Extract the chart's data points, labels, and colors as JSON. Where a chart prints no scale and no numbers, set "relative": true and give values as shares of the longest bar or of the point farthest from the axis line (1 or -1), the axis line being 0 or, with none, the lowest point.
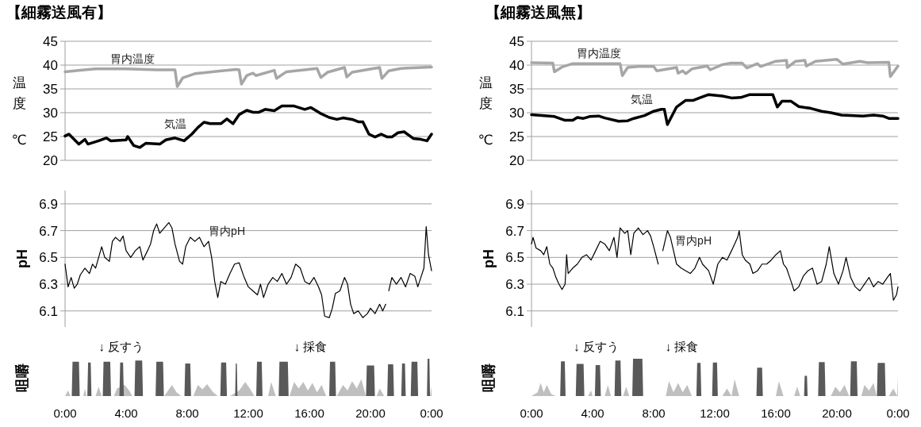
{
  "chart_data": [
    {
      "type": "line",
      "title": "【細霧送風有】",
      "ylabel": "温度℃",
      "xlim": [
        0,
        24
      ],
      "ylim": [
        20,
        45
      ],
      "yticks": [
        20,
        25,
        30,
        35,
        40,
        45
      ],
      "grid": "y",
      "tick_labels": "y",
      "series": [
        {
          "name": "胃内温度",
          "color": "#a6a6a6",
          "x": [
            0,
            1,
            2,
            4,
            6,
            7.2,
            7.35,
            7.7,
            8.5,
            10,
            11.2,
            11.4,
            11.55,
            11.9,
            12.3,
            12.5,
            13.7,
            13.85,
            14.5,
            16.5,
            16.75,
            17.2,
            18.3,
            18.45,
            18.8,
            20.6,
            20.75,
            21.2,
            22,
            24
          ],
          "values": [
            38.6,
            38.9,
            39.2,
            39.2,
            39.0,
            39.0,
            35.5,
            37.3,
            38.2,
            38.7,
            39.1,
            39.0,
            36.0,
            37.8,
            38.3,
            37.8,
            38.9,
            37.2,
            38.6,
            39.3,
            37.4,
            38.5,
            39.5,
            37.5,
            38.5,
            39.5,
            37.2,
            38.8,
            39.3,
            39.6
          ]
        },
        {
          "name": "気温",
          "color": "#000000",
          "x": [
            0,
            0.25,
            0.9,
            1.3,
            1.5,
            2.2,
            2.7,
            3.0,
            4.0,
            4.1,
            4.5,
            4.9,
            5.3,
            6.2,
            6.6,
            7.2,
            7.8,
            8.3,
            8.7,
            9.1,
            9.5,
            10.2,
            10.6,
            11.0,
            11.4,
            11.9,
            12.3,
            12.7,
            13.1,
            13.7,
            14.2,
            15.0,
            15.7,
            16.1,
            16.7,
            17.3,
            17.8,
            18.2,
            18.8,
            19.2,
            19.5,
            19.9,
            20.3,
            20.7,
            21.1,
            21.4,
            21.8,
            22.2,
            22.8,
            23.3,
            23.7,
            24
          ],
          "values": [
            25.1,
            25.5,
            23.4,
            24.4,
            23.4,
            24.1,
            24.7,
            24.1,
            24.3,
            25.0,
            23.1,
            22.7,
            23.6,
            23.4,
            24.3,
            24.7,
            24.1,
            25.5,
            26.9,
            28.0,
            27.7,
            27.7,
            28.7,
            27.7,
            29.6,
            30.5,
            30.1,
            30.1,
            30.7,
            30.4,
            31.4,
            31.4,
            30.7,
            31.1,
            29.9,
            29.0,
            28.6,
            28.9,
            28.6,
            28.1,
            28.1,
            25.5,
            24.9,
            25.5,
            24.9,
            24.9,
            25.8,
            26.0,
            24.6,
            24.4,
            24.1,
            25.5
          ]
        }
      ]
    },
    {
      "type": "line",
      "title": "【細霧送風無】",
      "ylabel": "温度℃",
      "xlim": [
        0,
        24
      ],
      "ylim": [
        20,
        45
      ],
      "yticks": [
        20,
        25,
        30,
        35,
        40,
        45
      ],
      "grid": "y",
      "tick_labels": "y",
      "series": [
        {
          "name": "胃内温度",
          "color": "#a6a6a6",
          "x": [
            0,
            1.4,
            1.5,
            2,
            2.7,
            5.8,
            5.95,
            6.3,
            7,
            8,
            8.2,
            9.5,
            9.6,
            9.9,
            10.1,
            10.5,
            11.5,
            11.7,
            12.5,
            13,
            13.8,
            14.1,
            14.8,
            15,
            16,
            16.7,
            16.75,
            17.3,
            17.9,
            18,
            18.6,
            20,
            20.4,
            21.5,
            22,
            23.4,
            23.5,
            24
          ],
          "values": [
            40.5,
            40.4,
            38.6,
            39.6,
            40.3,
            40.3,
            37.8,
            39.5,
            39.7,
            39.7,
            38.8,
            39.5,
            38.3,
            38.8,
            38.2,
            39.2,
            39.8,
            39.0,
            40.1,
            40.4,
            40.4,
            39.4,
            40.3,
            39.7,
            40.8,
            41.0,
            39.5,
            40.8,
            41.0,
            39.8,
            40.8,
            41.2,
            40.2,
            40.8,
            40.5,
            40.6,
            37.6,
            39.8
          ]
        },
        {
          "name": "気温",
          "color": "#000000",
          "x": [
            0,
            1.5,
            2.2,
            2.7,
            3.0,
            3.4,
            3.8,
            4.4,
            4.8,
            5.7,
            6.3,
            6.7,
            7.4,
            8.0,
            8.5,
            8.7,
            8.9,
            9.5,
            10.1,
            10.6,
            11.0,
            11.6,
            12.5,
            13.1,
            13.7,
            14.3,
            15.8,
            16.1,
            16.4,
            17.0,
            17.5,
            18.3,
            19.0,
            19.6,
            20.3,
            21.7,
            22.4,
            23.0,
            23.4,
            24
          ],
          "values": [
            29.6,
            29.2,
            28.4,
            28.4,
            29.0,
            28.8,
            29.2,
            29.3,
            28.9,
            28.2,
            28.3,
            28.8,
            29.4,
            30.3,
            30.7,
            30.7,
            27.5,
            31.2,
            32.6,
            32.6,
            33.1,
            33.8,
            33.5,
            33.1,
            33.2,
            33.8,
            33.8,
            31.2,
            32.4,
            32.4,
            31.3,
            30.9,
            30.3,
            30.0,
            29.5,
            29.3,
            29.5,
            29.3,
            28.8,
            28.8
          ]
        }
      ]
    },
    {
      "type": "line",
      "ylabel": "pH",
      "xlim": [
        0,
        24
      ],
      "ylim": [
        5.98,
        7.0
      ],
      "yticks": [
        6.1,
        6.3,
        6.5,
        6.7,
        6.9
      ],
      "grid": "y",
      "tick_labels": "y",
      "series": [
        {
          "name": "胃内pH",
          "color": "#000000",
          "x": [
            0,
            0.2,
            0.4,
            0.6,
            0.8,
            1,
            1.3,
            1.6,
            1.8,
            2.0,
            2.2,
            2.4,
            2.6,
            2.9,
            3.1,
            3.3,
            3.6,
            3.8,
            4.0,
            4.3,
            4.6,
            4.9,
            5.1,
            5.4,
            5.6,
            5.8,
            6.0,
            6.2,
            6.5,
            6.8,
            7.0,
            7.2,
            7.5,
            7.7,
            7.9,
            8.2,
            8.5,
            8.8,
            9.1,
            9.4,
            9.6,
            9.8,
            10.0,
            10.2,
            10.5,
            10.8,
            11.1,
            11.4,
            11.7,
            12.0,
            12.3,
            12.6,
            12.8,
            13.0,
            13.3,
            13.6,
            13.9,
            14.2,
            14.5,
            14.8,
            15.1,
            15.4,
            15.7,
            16.0,
            16.3,
            16.6,
            16.8,
            17.0,
            17.3,
            17.5,
            17.7,
            18.0,
            18.3,
            18.5,
            18.7,
            18.9,
            19.2,
            19.5,
            19.8,
            20.0,
            20.3,
            20.6,
            20.8,
            21.0,
            21.1,
            21.2,
            21.4,
            21.7,
            22.0,
            22.3,
            22.6,
            22.9,
            23.1,
            23.3,
            23.5,
            23.65,
            23.8,
            24
          ],
          "values": [
            6.45,
            6.28,
            6.35,
            6.27,
            6.3,
            6.37,
            6.42,
            6.38,
            6.45,
            6.42,
            6.5,
            6.58,
            6.5,
            6.47,
            6.62,
            6.65,
            6.62,
            6.66,
            6.55,
            6.5,
            6.55,
            6.58,
            6.48,
            6.55,
            6.6,
            6.7,
            6.75,
            6.68,
            6.72,
            6.76,
            6.72,
            6.6,
            6.47,
            6.45,
            6.58,
            6.65,
            6.62,
            6.65,
            6.58,
            6.62,
            6.5,
            6.32,
            6.2,
            6.32,
            6.3,
            6.38,
            6.45,
            6.46,
            6.36,
            6.28,
            6.25,
            6.22,
            6.3,
            6.2,
            6.3,
            6.35,
            6.32,
            6.38,
            6.3,
            6.35,
            6.45,
            6.42,
            6.32,
            6.3,
            6.35,
            6.28,
            6.22,
            6.06,
            6.05,
            6.12,
            6.23,
            6.25,
            6.35,
            6.3,
            6.15,
            6.08,
            6.1,
            6.05,
            6.08,
            6.12,
            6.08,
            6.15,
            6.1,
            6.15,
            null,
            6.25,
            6.35,
            6.3,
            6.35,
            6.28,
            6.38,
            6.36,
            6.28,
            6.35,
            6.42,
            6.73,
            6.52,
            6.4
          ]
        }
      ]
    },
    {
      "type": "line",
      "ylabel": "pH",
      "xlim": [
        0,
        24
      ],
      "ylim": [
        5.98,
        7.0
      ],
      "yticks": [
        6.1,
        6.3,
        6.5,
        6.7,
        6.9
      ],
      "grid": "y",
      "tick_labels": "y",
      "series": [
        {
          "name": "胃内pH",
          "color": "#000000",
          "x": [
            0,
            0.1,
            0.3,
            0.6,
            0.8,
            1.0,
            1.2,
            1.4,
            1.6,
            1.8,
            2.0,
            2.2,
            2.3,
            2.4,
            2.7,
            3.0,
            3.3,
            3.6,
            3.9,
            4.2,
            4.5,
            4.8,
            5.1,
            5.4,
            5.6,
            5.8,
            6.1,
            6.3,
            6.5,
            6.7,
            7.0,
            7.3,
            7.6,
            7.8,
            8.0,
            8.3,
            8.4,
            8.6,
            8.9,
            9.1,
            9.3,
            9.5,
            9.8,
            10.1,
            10.4,
            10.7,
            11.0,
            11.2,
            11.6,
            11.9,
            12.2,
            12.5,
            12.8,
            13.1,
            13.3,
            13.5,
            13.6,
            13.8,
            14.0,
            14.3,
            14.5,
            14.8,
            15.1,
            15.4,
            15.7,
            16.0,
            16.3,
            16.5,
            16.7,
            17.0,
            17.2,
            17.5,
            17.8,
            18.1,
            18.4,
            18.7,
            19.0,
            19.3,
            19.5,
            19.8,
            20.1,
            20.4,
            20.6,
            20.9,
            21.2,
            21.5,
            21.8,
            22.1,
            22.4,
            22.7,
            23.0,
            23.3,
            23.5,
            23.7,
            23.9,
            24
          ],
          "values": [
            6.6,
            6.65,
            6.57,
            6.55,
            6.52,
            6.58,
            6.45,
            6.42,
            6.35,
            6.3,
            6.26,
            6.3,
            6.52,
            6.38,
            6.42,
            6.45,
            6.5,
            6.52,
            6.48,
            6.55,
            6.62,
            6.6,
            6.55,
            6.65,
            6.5,
            6.72,
            6.68,
            6.7,
            6.52,
            6.68,
            6.72,
            6.67,
            6.7,
            6.66,
            6.58,
            6.45,
            null,
            6.55,
            6.7,
            6.65,
            6.55,
            6.45,
            6.42,
            6.4,
            6.38,
            6.42,
            6.5,
            6.45,
            6.4,
            6.3,
            6.45,
            6.5,
            6.48,
            6.55,
            6.6,
            6.65,
            6.7,
            6.52,
            6.48,
            6.45,
            6.38,
            6.4,
            6.45,
            6.45,
            6.48,
            6.52,
            6.55,
            6.45,
            6.42,
            6.32,
            6.25,
            6.28,
            6.36,
            6.4,
            6.42,
            6.3,
            6.32,
            6.45,
            6.58,
            6.38,
            6.3,
            6.4,
            6.5,
            6.35,
            6.28,
            6.25,
            6.3,
            6.35,
            6.28,
            6.32,
            6.3,
            6.35,
            6.38,
            6.18,
            6.22,
            6.28
          ]
        }
      ]
    },
    {
      "type": "area",
      "relative": true,
      "ylabel": "咀嚼",
      "xlim": [
        0,
        24
      ],
      "xticks": [
        {
          "value": 0,
          "label": "0:00"
        },
        {
          "value": 4,
          "label": "4:00"
        },
        {
          "value": 8,
          "label": "8:00"
        },
        {
          "value": 12,
          "label": "12:00"
        },
        {
          "value": 16,
          "label": "16:00"
        },
        {
          "value": 20,
          "label": "20:00"
        },
        {
          "value": 24,
          "label": "0:00"
        }
      ],
      "tick_labels": "x",
      "annotations": [
        "↓ 反すう",
        "↓ 採食"
      ],
      "series": [
        {
          "color": "#bfbfbf",
          "x": [
            0,
            0.2,
            0.35,
            1.2,
            1.3,
            1.4,
            2.0,
            2.2,
            2.4,
            3.2,
            3.4,
            3.9,
            4.2,
            4.4,
            6.5,
            7.0,
            7.3,
            7.6,
            8.4,
            8.7,
            9.0,
            9.3,
            9.7,
            10.0,
            10.8,
            11.4,
            11.8,
            12.1,
            12.4,
            13.3,
            13.5,
            13.8,
            14.7,
            15.0,
            15.3,
            15.6,
            15.9,
            16.2,
            16.5,
            16.8,
            17.1,
            17.8,
            18.2,
            18.5,
            18.8,
            19.1,
            19.4,
            19.7,
            20.4,
            20.6,
            20.9,
            23.9,
            24
          ],
          "values": [
            0,
            0.15,
            0,
            0,
            0.2,
            0,
            0,
            0.25,
            0,
            0,
            0.2,
            0.3,
            0.15,
            0,
            0,
            0.3,
            0.1,
            0,
            0,
            0.3,
            0.18,
            0.32,
            0.1,
            0,
            0,
            0.15,
            0.38,
            0.2,
            0,
            0,
            0.38,
            0,
            0,
            0.38,
            0.2,
            0.38,
            0.15,
            0.35,
            0.1,
            0.3,
            0,
            0,
            0.3,
            0.15,
            0.4,
            0.2,
            0.45,
            0,
            0,
            0.2,
            0,
            0,
            0.25
          ]
        },
        {
          "color": "#595959",
          "x": [
            0,
            0.44,
            0.49,
            0.91,
            0.96,
            1.46,
            1.51,
            1.68,
            1.73,
            2.47,
            2.52,
            2.96,
            3.01,
            3.56,
            3.61,
            3.8,
            3.85,
            4.55,
            4.6,
            5.05,
            5.1,
            5.93,
            5.98,
            6.42,
            6.47,
            7.82,
            7.87,
            8.2,
            8.25,
            10.17,
            10.22,
            10.55,
            10.6,
            11.14,
            11.18,
            11.25,
            11.29,
            12.52,
            12.57,
            12.88,
            12.93,
            13.99,
            14.04,
            14.59,
            14.64,
            17.3,
            17.35,
            17.69,
            17.74,
            19.71,
            19.76,
            20.24,
            20.29,
            21.1,
            21.15,
            21.49,
            21.54,
            22.02,
            22.07,
            22.26,
            22.31,
            22.64,
            22.69,
            23.07,
            23.12,
            23.7,
            23.74,
            23.86,
            23.9,
            24
          ],
          "values": [
            0,
            0,
            0.92,
            0.92,
            0,
            0,
            0.9,
            0.9,
            0,
            0,
            0.92,
            0.92,
            0,
            0,
            0.9,
            0.9,
            0,
            0,
            0.95,
            0.95,
            0,
            0,
            0.92,
            0.92,
            0,
            0,
            0.87,
            0.87,
            0,
            0,
            0.9,
            0.9,
            0,
            0,
            0.87,
            0.87,
            0,
            0,
            0.92,
            0.92,
            0,
            0,
            0.92,
            0.92,
            0,
            0,
            0.92,
            0.92,
            0,
            0,
            0.82,
            0.82,
            0,
            0,
            0.85,
            0.85,
            0,
            0,
            0.87,
            0.87,
            0,
            0,
            0.92,
            0.92,
            0,
            0,
            1,
            1,
            0,
            0
          ]
        }
      ]
    },
    {
      "type": "area",
      "relative": true,
      "ylabel": "咀嚼",
      "xlim": [
        0,
        24
      ],
      "xticks": [
        {
          "value": 0,
          "label": "0:00"
        },
        {
          "value": 4,
          "label": "4:00"
        },
        {
          "value": 8,
          "label": "8:00"
        },
        {
          "value": 12,
          "label": "12:00"
        },
        {
          "value": 16,
          "label": "16:00"
        },
        {
          "value": 20,
          "label": "20:00"
        },
        {
          "value": 24,
          "label": "0:00"
        }
      ],
      "tick_labels": "x",
      "annotations": [
        "↓ 反すう",
        "↓ 採食"
      ],
      "series": [
        {
          "color": "#bfbfbf",
          "x": [
            0,
            0.4,
            0.6,
            0.8,
            1.0,
            1.3,
            1.6,
            3.7,
            3.9,
            4.0,
            4.8,
            5.0,
            5.2,
            6.0,
            6.2,
            6.4,
            8.8,
            9.0,
            9.3,
            9.6,
            9.9,
            10.2,
            10.5,
            12.5,
            12.8,
            13.1,
            13.3,
            13.6,
            16.0,
            16.2,
            16.5,
            17.2,
            17.4,
            17.6,
            19.6,
            19.9,
            20.2,
            20.5,
            20.8,
            21.6,
            21.8,
            22.1,
            22.4,
            22.6,
            23.4,
            23.7,
            23.95,
            24
          ],
          "values": [
            0,
            0.1,
            0.35,
            0.1,
            0.3,
            0.05,
            0,
            0,
            0.15,
            0,
            0,
            0.3,
            0,
            0,
            0.25,
            0,
            0,
            0.4,
            0.1,
            0.35,
            0.1,
            0.3,
            0,
            0,
            0.2,
            0,
            0.45,
            0,
            0,
            0.4,
            0,
            0,
            0.25,
            0,
            0,
            0.25,
            0.1,
            0.3,
            0,
            0,
            0.3,
            0.15,
            0.35,
            0,
            0,
            0.2,
            0,
            0.55
          ]
        },
        {
          "color": "#595959",
          "x": [
            0,
            1.88,
            1.93,
            2.18,
            2.23,
            2.9,
            2.95,
            3.41,
            3.46,
            4.15,
            4.2,
            4.49,
            4.54,
            5.44,
            5.49,
            5.83,
            5.88,
            6.6,
            6.65,
            7.26,
            7.31,
            10.8,
            10.85,
            11.07,
            11.12,
            11.83,
            11.88,
            12.15,
            12.2,
            14.73,
            14.78,
            15.1,
            15.15,
            17.85,
            17.89,
            18.04,
            18.08,
            18.77,
            18.82,
            19.2,
            19.25,
            20.87,
            20.92,
            21.3,
            21.35,
            22.62,
            22.67,
            23.14,
            23.19,
            24
          ],
          "values": [
            0,
            0,
            0.93,
            0.93,
            0,
            0,
            0.86,
            0.86,
            0,
            0,
            0.83,
            0.83,
            0,
            0,
            0.95,
            0.95,
            0,
            0,
            1,
            1,
            0,
            0,
            0.89,
            0.89,
            0,
            0,
            0.9,
            0.9,
            0,
            0,
            0.76,
            0.76,
            0,
            0,
            0.54,
            0.54,
            0,
            0,
            0.91,
            0.91,
            0,
            0,
            0.93,
            0.93,
            0,
            0,
            0.89,
            0.89,
            0,
            0
          ]
        }
      ]
    }
  ]
}
